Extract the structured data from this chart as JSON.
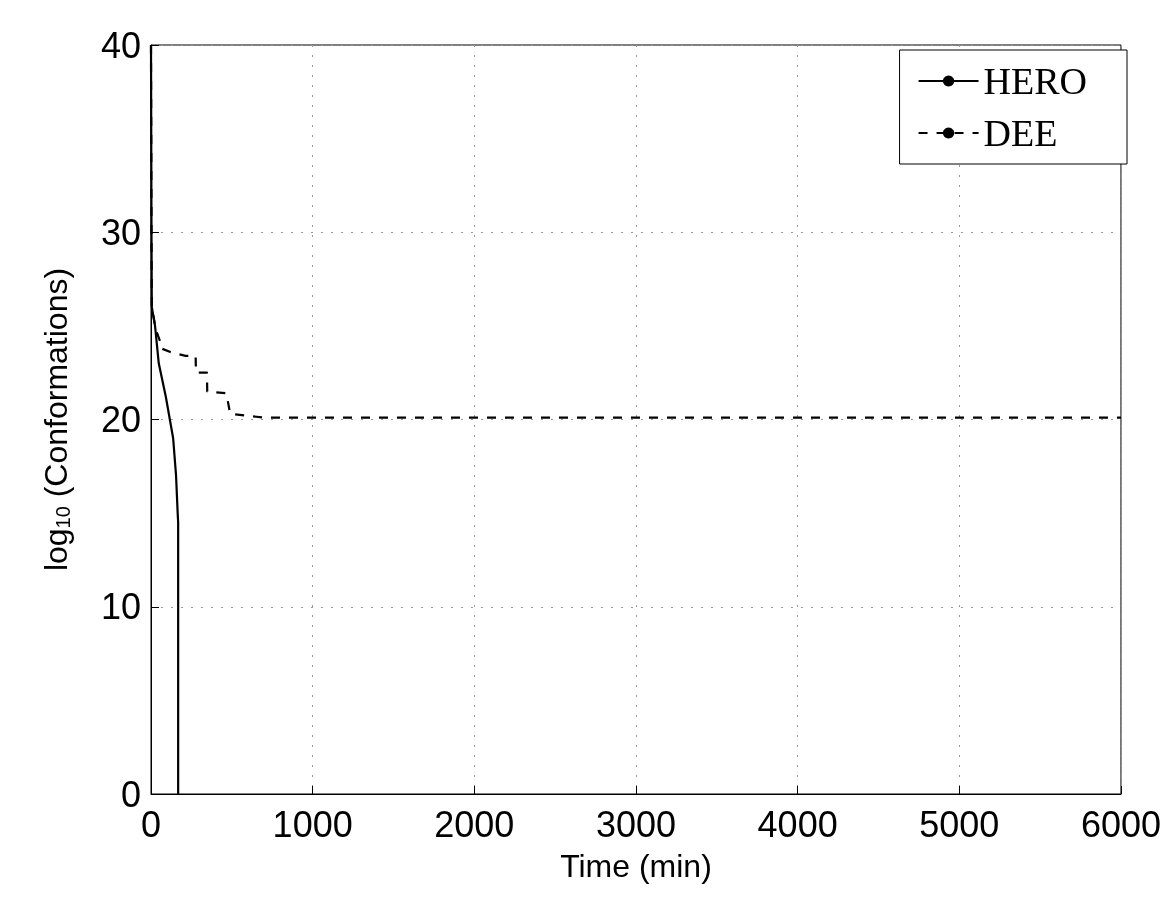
{
  "chart_data": {
    "type": "line",
    "xlabel": "Time (min)",
    "ylabel": "log$_{10}$ (Conformations)",
    "xlim": [
      0,
      6000
    ],
    "xticks": [
      0,
      1000,
      2000,
      3000,
      4000,
      5000,
      6000
    ],
    "ylim": [
      0,
      40
    ],
    "yticks": [
      0,
      10,
      20,
      30,
      40
    ],
    "grid": true,
    "legend": "top right",
    "marker": "none",
    "series": [
      {
        "name": "HERO",
        "color": "#000000",
        "line_style": "solid",
        "x": [
          0,
          3,
          5,
          25,
          48,
          92,
          137,
          155,
          165,
          168,
          168
        ],
        "values": [
          40,
          30,
          26,
          25,
          23,
          21.2,
          19,
          17,
          15,
          14.5,
          0
        ]
      },
      {
        "name": "DEE",
        "color": "#000000",
        "line_style": "dashed",
        "x": [
          0,
          3,
          5,
          30,
          59,
          62,
          120,
          214,
          276,
          278,
          346,
          348,
          466,
          490,
          700,
          6000
        ],
        "values": [
          40,
          30,
          26,
          24.8,
          24.1,
          23.8,
          23.6,
          23.4,
          23.4,
          22.5,
          22.5,
          21.5,
          21.4,
          20.3,
          20.1,
          20.1
        ]
      }
    ]
  }
}
